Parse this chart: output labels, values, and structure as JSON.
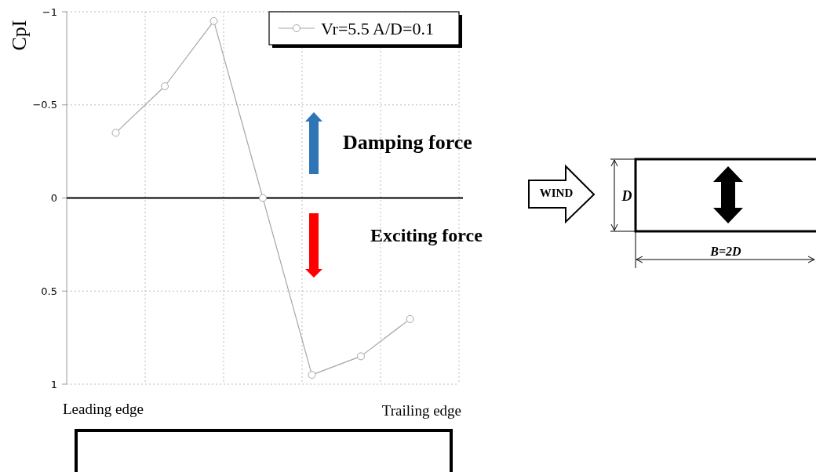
{
  "chart_data": {
    "type": "line",
    "ylabel": "CpI",
    "categories": [
      null,
      null,
      null,
      null,
      null,
      null,
      null
    ],
    "series": [
      {
        "name": "Vr=5.5 A/D=0.1",
        "color": "#a6a6a6",
        "values": [
          -0.35,
          -0.6,
          -0.95,
          0,
          0.95,
          0.85,
          0.65
        ]
      }
    ],
    "ylim": [
      1,
      -1
    ],
    "yticks": [
      {
        "value": -1,
        "label": "−1"
      },
      {
        "value": -0.5,
        "label": "−0.5"
      },
      0,
      0.5,
      1
    ],
    "grid": true,
    "legend": "top right",
    "marker": "circle",
    "line_style": "solid",
    "ref_lines": [
      {
        "axis": "y",
        "value": 0,
        "color": "#000000"
      }
    ],
    "annotations": [
      "Leading edge",
      "Trailing edge",
      "Damping force",
      "Exciting force",
      "WIND",
      "D",
      "B=2D"
    ]
  }
}
